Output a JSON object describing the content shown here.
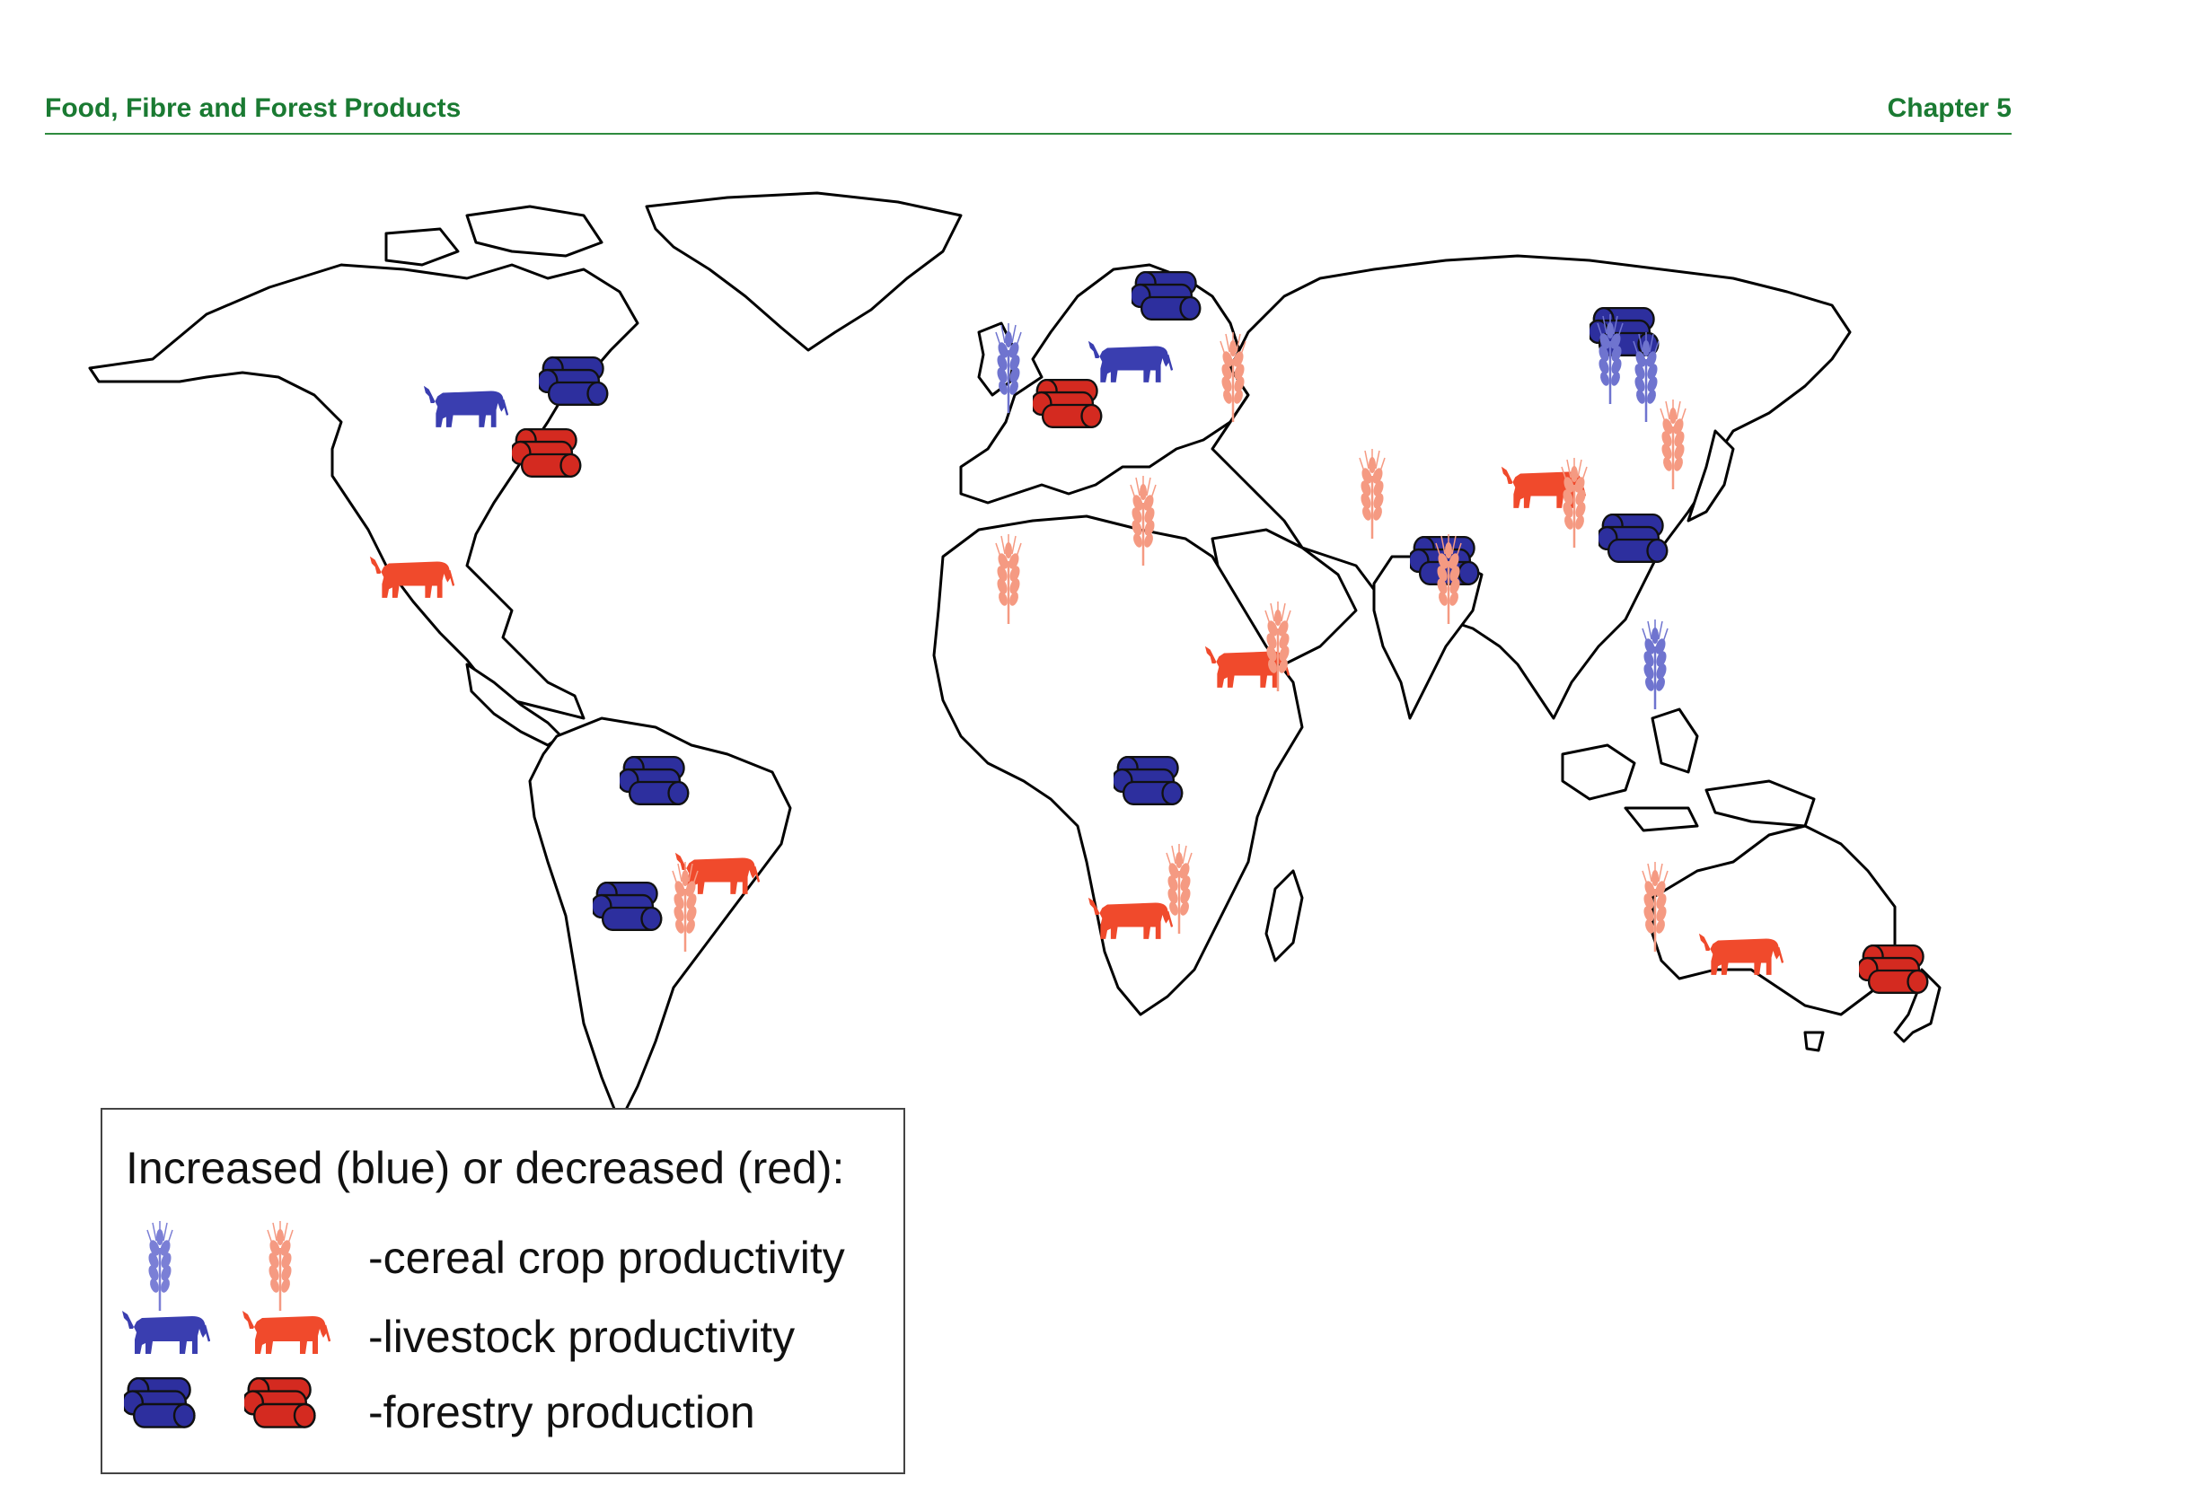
{
  "header": {
    "left": "Food, Fibre and Forest Products",
    "right": "Chapter 5"
  },
  "colors": {
    "increase": "#2d2f9e",
    "increase_light": "#6f74cf",
    "decrease": "#f04a2c",
    "decrease_light": "#f59a82",
    "forestry_decrease": "#d42a20",
    "land_outline": "#000000",
    "header_green": "#1a7a32"
  },
  "legend": {
    "title": "Increased (blue) or decreased (red):",
    "items": [
      {
        "label": "-cereal crop productivity",
        "icon": "wheat-icon"
      },
      {
        "label": "-livestock productivity",
        "icon": "cow-icon"
      },
      {
        "label": "-forestry production",
        "icon": "log-icon"
      }
    ]
  },
  "markers": [
    {
      "region": "Central North America",
      "type": "livestock",
      "change": "increase"
    },
    {
      "region": "Eastern Canada",
      "type": "forestry",
      "change": "increase"
    },
    {
      "region": "South-east United States",
      "type": "forestry",
      "change": "decrease"
    },
    {
      "region": "Mexico",
      "type": "livestock",
      "change": "decrease"
    },
    {
      "region": "Northern Europe",
      "type": "cereal",
      "change": "increase"
    },
    {
      "region": "Scandinavia",
      "type": "forestry",
      "change": "increase"
    },
    {
      "region": "Eastern Europe",
      "type": "livestock",
      "change": "increase"
    },
    {
      "region": "Russia",
      "type": "cereal",
      "change": "decrease"
    },
    {
      "region": "Central Europe",
      "type": "forestry",
      "change": "decrease"
    },
    {
      "region": "Siberia",
      "type": "forestry",
      "change": "increase"
    },
    {
      "region": "Siberia",
      "type": "cereal",
      "change": "increase"
    },
    {
      "region": "Far East Russia",
      "type": "cereal",
      "change": "increase"
    },
    {
      "region": "Central Asia",
      "type": "cereal",
      "change": "decrease"
    },
    {
      "region": "Mongolia",
      "type": "livestock",
      "change": "decrease"
    },
    {
      "region": "China",
      "type": "cereal",
      "change": "decrease"
    },
    {
      "region": "North-east China",
      "type": "cereal",
      "change": "decrease"
    },
    {
      "region": "Eastern China",
      "type": "forestry",
      "change": "increase"
    },
    {
      "region": "India",
      "type": "forestry",
      "change": "increase"
    },
    {
      "region": "India",
      "type": "cereal",
      "change": "decrease"
    },
    {
      "region": "South-east Asia",
      "type": "cereal",
      "change": "increase"
    },
    {
      "region": "Sahel",
      "type": "cereal",
      "change": "decrease"
    },
    {
      "region": "North-east Africa",
      "type": "cereal",
      "change": "decrease"
    },
    {
      "region": "East Africa",
      "type": "livestock",
      "change": "decrease"
    },
    {
      "region": "East Africa",
      "type": "cereal",
      "change": "decrease"
    },
    {
      "region": "Central Africa",
      "type": "forestry",
      "change": "increase"
    },
    {
      "region": "Southern Africa",
      "type": "livestock",
      "change": "decrease"
    },
    {
      "region": "Southern Africa",
      "type": "cereal",
      "change": "decrease"
    },
    {
      "region": "Amazon",
      "type": "forestry",
      "change": "increase"
    },
    {
      "region": "Brazil",
      "type": "livestock",
      "change": "decrease"
    },
    {
      "region": "Southern Brazil",
      "type": "cereal",
      "change": "decrease"
    },
    {
      "region": "Argentina",
      "type": "forestry",
      "change": "increase"
    },
    {
      "region": "Western Australia",
      "type": "cereal",
      "change": "decrease"
    },
    {
      "region": "South-east Australia",
      "type": "livestock",
      "change": "decrease"
    },
    {
      "region": "New Zealand",
      "type": "forestry",
      "change": "decrease"
    }
  ]
}
